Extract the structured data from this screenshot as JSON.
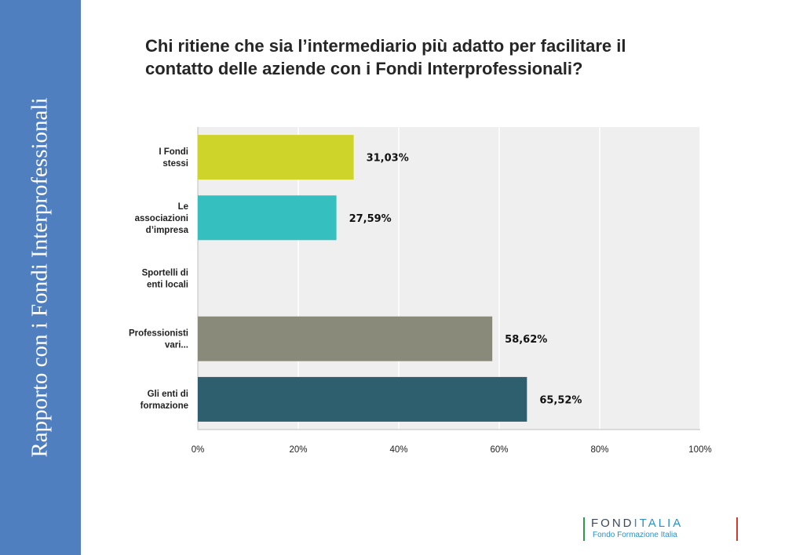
{
  "sidebar": {
    "text": "Rapporto con i Fondi Interprofessionali"
  },
  "title": {
    "line1": "Chi ritiene che sia l’intermediario più adatto per facilitare il",
    "line2": "contatto delle aziende con i Fondi Interprofessionali?"
  },
  "chart_data": {
    "type": "bar",
    "orientation": "horizontal",
    "categories": [
      [
        "I Fondi",
        "stessi"
      ],
      [
        "Le",
        "associazioni",
        "d’impresa"
      ],
      [
        "Sportelli di",
        "enti locali"
      ],
      [
        "Professionisti",
        "vari..."
      ],
      [
        "Gli enti di",
        "formazione"
      ]
    ],
    "values": [
      31.03,
      27.59,
      0,
      58.62,
      65.52
    ],
    "value_labels": [
      "31,03%",
      "27,59%",
      "",
      "58,62%",
      "65,52%"
    ],
    "colors": [
      "#cfd42a",
      "#35bfbf",
      "#cccccc",
      "#8a8a7a",
      "#2e5f6e"
    ],
    "xlim": [
      0,
      100
    ],
    "ticks": [
      "0%",
      "20%",
      "40%",
      "60%",
      "80%",
      "100%"
    ],
    "grid": true,
    "plot_background": "#efefef"
  },
  "logo": {
    "name_part1": "FOND",
    "name_part2": "ITALIA",
    "subtitle": "Fondo Formazione Italia"
  }
}
